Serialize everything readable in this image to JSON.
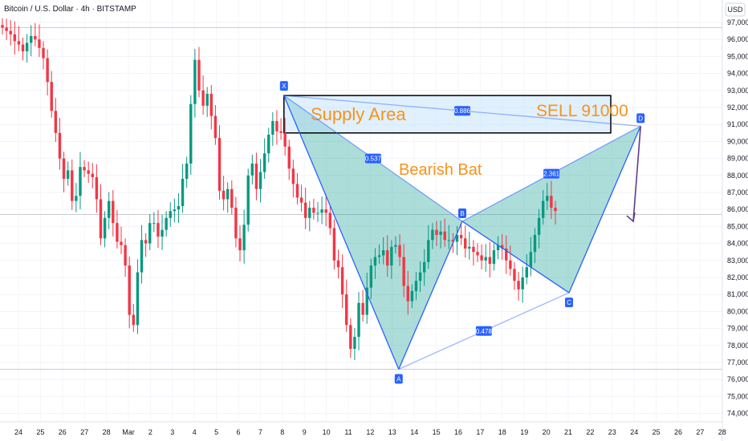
{
  "header": {
    "title": "Bitcoin / U.S. Dollar · 4h · BITSTAMP",
    "currency": "USD"
  },
  "chart_data": {
    "type": "candlestick",
    "title": "Bitcoin / U.S. Dollar · 4h · BITSTAMP",
    "ylabel": "USD",
    "ylim": [
      73500,
      98600
    ],
    "y_ticks": [
      74000,
      75000,
      76000,
      77000,
      78000,
      79000,
      80000,
      81000,
      82000,
      83000,
      84000,
      85000,
      86000,
      87000,
      88000,
      89000,
      90000,
      91000,
      92000,
      93000,
      94000,
      95000,
      96000,
      97000
    ],
    "x_ticks": [
      "24",
      "25",
      "26",
      "27",
      "28",
      "Mar",
      "2",
      "3",
      "4",
      "5",
      "6",
      "7",
      "8",
      "9",
      "10",
      "11",
      "12",
      "13",
      "14",
      "15",
      "16",
      "17",
      "18",
      "19",
      "20",
      "21",
      "22",
      "23",
      "24",
      "25",
      "26",
      "27",
      "28"
    ],
    "candles_close": [
      96700,
      96500,
      96300,
      95900,
      95700,
      95300,
      95800,
      96200,
      96000,
      95500,
      94900,
      93500,
      91800,
      90500,
      89000,
      87800,
      88300,
      86500,
      86800,
      88500,
      88300,
      88100,
      87900,
      86600,
      84300,
      85500,
      86500,
      85200,
      84100,
      83900,
      82700,
      79800,
      79200,
      82300,
      84200,
      84000,
      85200,
      85200,
      84400,
      84800,
      85500,
      85900,
      86000,
      86200,
      87800,
      88700,
      92200,
      94800,
      93000,
      92100,
      92800,
      91500,
      90200,
      87100,
      86600,
      87200,
      86100,
      84300,
      83600,
      85100,
      88000,
      88700,
      87200,
      88200,
      89300,
      90400,
      91200,
      90600,
      90500,
      89700,
      88400,
      87500,
      86700,
      86400,
      85500,
      86100,
      85800,
      85800,
      86000,
      85800,
      84900,
      83000,
      82600,
      81000,
      79200,
      77800,
      78500,
      80500,
      79800,
      81400,
      82700,
      83200,
      83300,
      83600,
      82700,
      83800,
      83900,
      83200,
      81500,
      80600,
      81200,
      81800,
      82300,
      82900,
      84200,
      84800,
      84500,
      84700,
      84200,
      84200,
      84100,
      84500,
      84300,
      83700,
      83800,
      83500,
      83300,
      83000,
      83200,
      82800,
      83600,
      83900,
      83700,
      83000,
      82500,
      81800,
      81300,
      82000,
      82600,
      83500,
      84500,
      85500,
      86500,
      86800,
      86100,
      85900
    ],
    "pattern": {
      "name": "Bearish Bat",
      "points": [
        {
          "label": "X",
          "x": "Mar 6",
          "y": 92700
        },
        {
          "label": "A",
          "x": "Mar 11",
          "y": 76600
        },
        {
          "label": "B",
          "x": "Mar 14",
          "y": 85300
        },
        {
          "label": "C",
          "x": "Mar 19",
          "y": 81100
        },
        {
          "label": "D",
          "x": "Mar 22",
          "y": 90900
        }
      ],
      "ratios": [
        "0.537",
        "0.886",
        "2.361",
        "0.478"
      ]
    },
    "annotations": {
      "supply_label": "Supply Area",
      "pattern_label": "Bearish Bat",
      "sell_label": "SELL 91000",
      "supply_zone": [
        90500,
        92700
      ]
    },
    "hlines": [
      96700,
      85700,
      76600
    ]
  },
  "colors": {
    "up": "#089981",
    "down": "#f23645",
    "pattern_fill": "#26a69a",
    "pattern_line": "#2962ff",
    "supply_fill": "#bbdefb",
    "orange": "#f7931a",
    "arrow": "#5e3c8c",
    "grid": "#e0e3eb",
    "text": "#131722"
  }
}
